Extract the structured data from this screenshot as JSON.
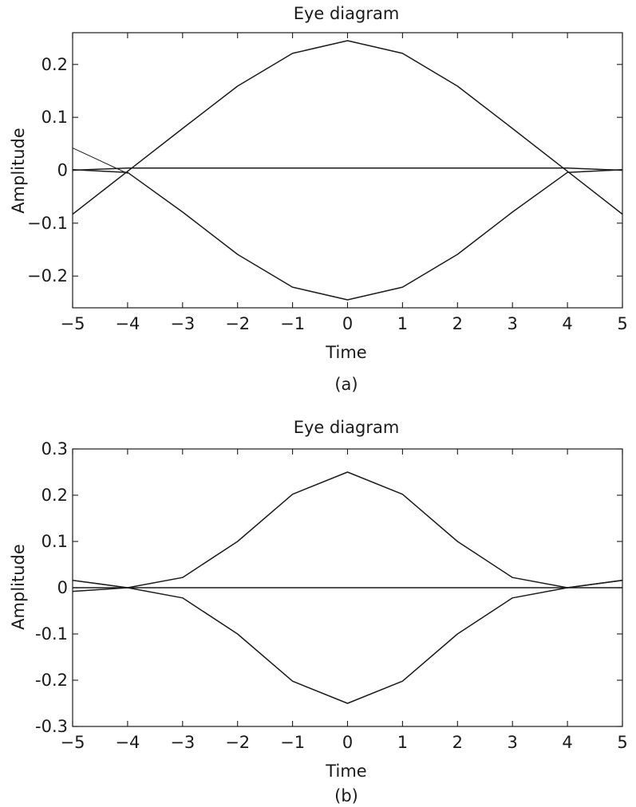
{
  "chart_data": [
    {
      "type": "line",
      "title": "Eye diagram",
      "xlabel": "Time",
      "ylabel": "Amplitude",
      "caption": "(a)",
      "xlim": [
        -5,
        5
      ],
      "ylim": [
        -0.26,
        0.26
      ],
      "grid": false,
      "x_ticks": [
        -5,
        -4,
        -3,
        -2,
        -1,
        0,
        1,
        2,
        3,
        4,
        5
      ],
      "x_tick_labels": [
        "−5",
        "−4",
        "−3",
        "−2",
        "−1",
        "0",
        "1",
        "2",
        "3",
        "4",
        "5"
      ],
      "y_ticks": [
        0.2,
        0.1,
        0,
        -0.1,
        -0.2
      ],
      "y_tick_labels": [
        "0.2",
        "0.1",
        "0",
        "−0.1",
        "−0.2"
      ],
      "series": [
        {
          "x": [
            -5,
            -4,
            -3,
            -2,
            -1,
            0,
            1,
            2,
            3,
            4,
            5
          ],
          "y": [
            -0.083,
            -0.002,
            0.079,
            0.159,
            0.221,
            0.245,
            0.221,
            0.159,
            0.079,
            -0.002,
            -0.083
          ]
        },
        {
          "x": [
            -5,
            -4,
            -3,
            -2,
            -1,
            0,
            1,
            2,
            3,
            4,
            5
          ],
          "y": [
            0.001,
            -0.004,
            -0.079,
            -0.159,
            -0.221,
            -0.245,
            -0.221,
            -0.159,
            -0.079,
            -0.004,
            0.001
          ]
        },
        {
          "x": [
            -5,
            -4,
            4,
            5
          ],
          "y": [
            0.0,
            0.004,
            0.004,
            0.0
          ]
        },
        {
          "x": [
            -5,
            -4
          ],
          "y": [
            0.042,
            -0.006
          ]
        }
      ]
    },
    {
      "type": "line",
      "title": "Eye diagram",
      "xlabel": "Time",
      "ylabel": "Amplitude",
      "caption": "(b)",
      "xlim": [
        -5,
        5
      ],
      "ylim": [
        -0.3,
        0.3
      ],
      "grid": false,
      "x_ticks": [
        -5,
        -4,
        -3,
        -2,
        -1,
        0,
        1,
        2,
        3,
        4,
        5
      ],
      "x_tick_labels": [
        "−5",
        "−4",
        "−3",
        "−2",
        "−1",
        "0",
        "1",
        "2",
        "3",
        "4",
        "5"
      ],
      "y_ticks": [
        0.3,
        0.2,
        0.1,
        0,
        -0.1,
        -0.2,
        -0.3
      ],
      "y_tick_labels": [
        "0.3",
        "0.2",
        "0.1",
        "0",
        "-0.1",
        "-0.2",
        "-0.3"
      ],
      "series": [
        {
          "x": [
            -5,
            -4,
            -3,
            -2,
            -1,
            0,
            1,
            2,
            3,
            4,
            5
          ],
          "y": [
            -0.008,
            0.0,
            0.022,
            0.1,
            0.202,
            0.25,
            0.202,
            0.1,
            0.022,
            0.0,
            0.0
          ]
        },
        {
          "x": [
            -5,
            -4,
            -3,
            -2,
            -1,
            0,
            1,
            2,
            3,
            4,
            5
          ],
          "y": [
            0.016,
            0.0,
            -0.022,
            -0.1,
            -0.202,
            -0.25,
            -0.202,
            -0.1,
            -0.022,
            0.0,
            0.016
          ]
        },
        {
          "x": [
            -5,
            -4,
            4,
            5
          ],
          "y": [
            0.0,
            0.0,
            0.0,
            0.016
          ]
        }
      ]
    }
  ]
}
